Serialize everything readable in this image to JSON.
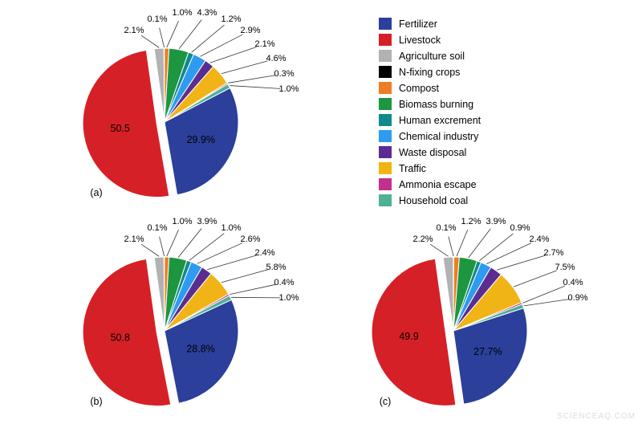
{
  "page": {
    "watermark": "SCIENCEAQ.COM"
  },
  "legend": {
    "items": [
      {
        "label": "Fertilizer",
        "color": "#2b3f9b"
      },
      {
        "label": "Livestock",
        "color": "#d62027"
      },
      {
        "label": "Agriculture soil",
        "color": "#b2b2b2"
      },
      {
        "label": "N-fixing crops",
        "color": "#000000"
      },
      {
        "label": "Compost",
        "color": "#ef7d25"
      },
      {
        "label": "Biomass burning",
        "color": "#1d9640"
      },
      {
        "label": "Human excrement",
        "color": "#108a8c"
      },
      {
        "label": "Chemical industry",
        "color": "#2d9bf0"
      },
      {
        "label": "Waste disposal",
        "color": "#5c2d91"
      },
      {
        "label": "Traffic",
        "color": "#f0b417"
      },
      {
        "label": "Ammonia escape",
        "color": "#c2308f"
      },
      {
        "label": "Household coal",
        "color": "#4eb095"
      }
    ]
  },
  "chart_data": [
    {
      "type": "pie",
      "id": "a",
      "tag": "(a)",
      "categories": [
        "Fertilizer",
        "Livestock",
        "Agriculture soil",
        "N-fixing crops",
        "Compost",
        "Biomass burning",
        "Human excrement",
        "Chemical industry",
        "Waste disposal",
        "Traffic",
        "Ammonia escape",
        "Household coal"
      ],
      "values": [
        29.9,
        50.5,
        2.1,
        0.1,
        1.0,
        4.3,
        1.2,
        2.9,
        2.1,
        4.6,
        0.3,
        1.0
      ],
      "outside_labels": [
        "2.1%",
        "0.1%",
        "1.0%",
        "4.3%",
        "1.2%",
        "2.9%",
        "2.1%",
        "4.6%",
        "0.3%",
        "1.0%"
      ],
      "inner_labels": {
        "livestock": "50.5",
        "fertilizer": "29.9%"
      }
    },
    {
      "type": "pie",
      "id": "b",
      "tag": "(b)",
      "categories": [
        "Fertilizer",
        "Livestock",
        "Agriculture soil",
        "N-fixing crops",
        "Compost",
        "Biomass burning",
        "Human excrement",
        "Chemical industry",
        "Waste disposal",
        "Traffic",
        "Ammonia escape",
        "Household coal"
      ],
      "values": [
        28.8,
        50.8,
        2.1,
        0.1,
        1.0,
        3.9,
        1.0,
        2.6,
        2.4,
        5.8,
        0.4,
        1.0
      ],
      "outside_labels": [
        "2.1%",
        "0.1%",
        "1.0%",
        "3.9%",
        "1.0%",
        "2.6%",
        "2.4%",
        "5.8%",
        "0.4%",
        "1.0%"
      ],
      "inner_labels": {
        "livestock": "50.8",
        "fertilizer": "28.8%"
      }
    },
    {
      "type": "pie",
      "id": "c",
      "tag": "(c)",
      "categories": [
        "Fertilizer",
        "Livestock",
        "Agriculture soil",
        "N-fixing crops",
        "Compost",
        "Biomass burning",
        "Human excrement",
        "Chemical industry",
        "Waste disposal",
        "Traffic",
        "Ammonia escape",
        "Household coal"
      ],
      "values": [
        27.7,
        49.9,
        2.2,
        0.1,
        1.2,
        3.9,
        0.9,
        2.4,
        2.7,
        7.5,
        0.4,
        0.9
      ],
      "outside_labels": [
        "2.2%",
        "0.1%",
        "1.2%",
        "3.9%",
        "0.9%",
        "2.4%",
        "2.7%",
        "7.5%",
        "0.4%",
        "0.9%"
      ],
      "inner_labels": {
        "livestock": "49.9",
        "fertilizer": "27.7%"
      }
    }
  ]
}
